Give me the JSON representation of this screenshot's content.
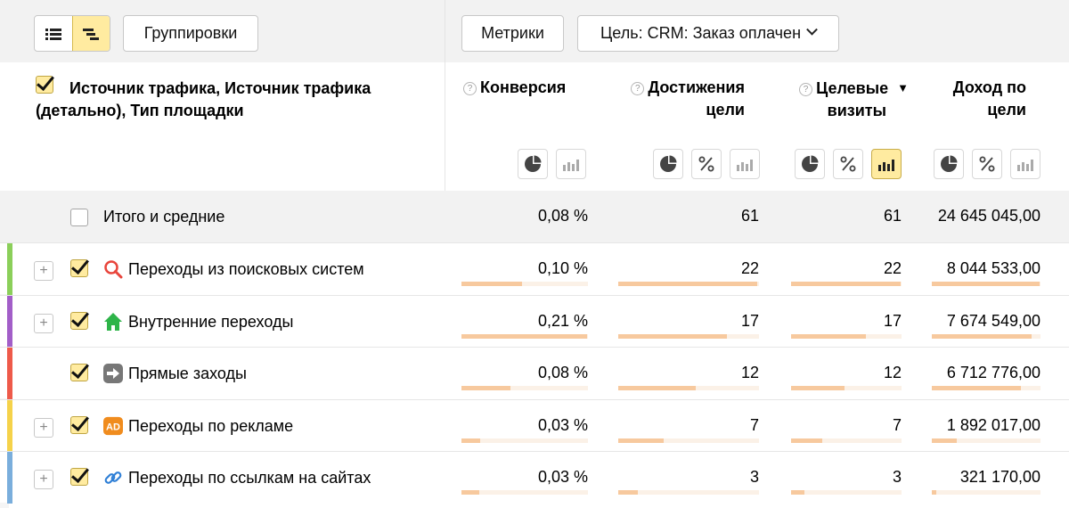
{
  "toolbar": {
    "groupings_label": "Группировки",
    "metrics_label": "Метрики",
    "goal_select": "Цель: CRM: Заказ оплачен"
  },
  "header": {
    "dimension_title": "Источник трафика, Источник трафика (детально), Тип площадки",
    "metrics": [
      {
        "line1": "Конверсия",
        "line2": ""
      },
      {
        "line1": "Достижения",
        "line2": "цели"
      },
      {
        "line1": "Целевые",
        "line2": "визиты"
      },
      {
        "line1": "Доход по",
        "line2": "цели"
      }
    ]
  },
  "total": {
    "label": "Итого и средние",
    "conversion": "0,08 %",
    "goal_reaches": "61",
    "target_visits": "61",
    "revenue": "24 645 045,00"
  },
  "rows": [
    {
      "label": "Переходы из поисковых систем",
      "conversion": "0,10 %",
      "goal_reaches": "22",
      "target_visits": "22",
      "revenue": "8 044 533,00",
      "icon": "search-icon",
      "color": "#8bcf5a",
      "bars": [
        0.48,
        0.99,
        0.99,
        0.99
      ]
    },
    {
      "label": "Внутренние переходы",
      "conversion": "0,21 %",
      "goal_reaches": "17",
      "target_visits": "17",
      "revenue": "7 674 549,00",
      "icon": "home-icon",
      "color": "#a25ec8",
      "bars": [
        0.99,
        0.77,
        0.68,
        0.92
      ]
    },
    {
      "label": "Прямые заходы",
      "conversion": "0,08 %",
      "goal_reaches": "12",
      "target_visits": "12",
      "revenue": "6 712 776,00",
      "icon": "arrow-right-icon",
      "color": "#ee5a4a",
      "bars": [
        0.39,
        0.55,
        0.48,
        0.82
      ]
    },
    {
      "label": "Переходы по рекламе",
      "conversion": "0,03 %",
      "goal_reaches": "7",
      "target_visits": "7",
      "revenue": "1 892 017,00",
      "icon": "ad-icon",
      "color": "#f5d24a",
      "bars": [
        0.15,
        0.32,
        0.28,
        0.23
      ]
    },
    {
      "label": "Переходы по ссылкам на сайтах",
      "conversion": "0,03 %",
      "goal_reaches": "3",
      "target_visits": "3",
      "revenue": "321 170,00",
      "icon": "link-icon",
      "color": "#7aaedc",
      "bars": [
        0.14,
        0.14,
        0.12,
        0.04
      ]
    }
  ],
  "colors": {
    "accent": "#ffeba0",
    "bar": "#f7c99e",
    "bar_track": "#fbf1e7"
  }
}
